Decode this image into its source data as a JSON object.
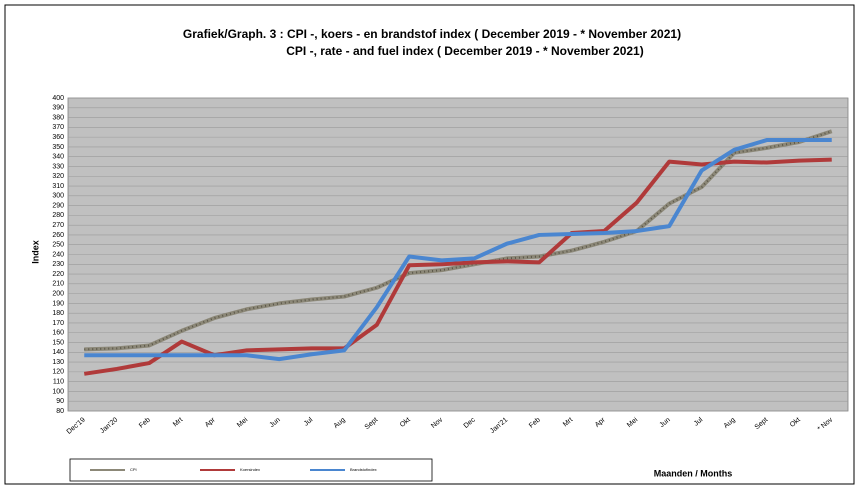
{
  "chart_data": {
    "type": "line",
    "title": "Grafiek/Graph. 3 : CPI -, koers - en brandstof index ( December 2019  -  * November 2021)",
    "subtitle": "CPI -, rate - and fuel index ( December 2019  -  * November  2021)",
    "y_label": "Index",
    "x_label": "Maanden / Months",
    "categories": [
      "Dec'19",
      "Jan'20",
      "Feb",
      "Mrt",
      "Apr",
      "Mei",
      "Jun",
      "Jul",
      "Aug",
      "Sept",
      "Okt",
      "Nov",
      "Dec",
      "Jan'21",
      "Feb",
      "Mrt",
      "Apr",
      "Mei",
      "Jun",
      "Jul",
      "Aug",
      "Sept",
      "Okt",
      "* Nov"
    ],
    "series": [
      {
        "name": "CPI",
        "color": "#8c8878",
        "values": [
          143,
          144,
          147,
          162,
          175,
          184,
          190,
          194,
          197,
          206,
          221,
          224,
          230,
          236,
          238,
          244,
          253,
          264,
          292,
          309,
          344,
          349,
          355,
          366
        ]
      },
      {
        "name": "Koersindex",
        "color": "#b03a3a",
        "values": [
          118,
          123,
          129,
          151,
          137,
          142,
          143,
          144,
          144,
          168,
          229,
          230,
          232,
          233,
          232,
          262,
          264,
          293,
          335,
          332,
          335,
          334,
          336,
          337
        ]
      },
      {
        "name": "Brandstofindex",
        "color": "#4a86d0",
        "values": [
          137,
          137,
          137,
          137,
          137,
          137,
          133,
          138,
          142,
          186,
          238,
          234,
          236,
          251,
          260,
          261,
          262,
          264,
          269,
          326,
          347,
          357,
          357,
          357
        ]
      }
    ],
    "ylim": [
      80,
      400
    ],
    "yticks": [
      80,
      90,
      100,
      110,
      120,
      130,
      140,
      150,
      160,
      170,
      180,
      190,
      200,
      210,
      220,
      230,
      240,
      250,
      260,
      270,
      280,
      290,
      300,
      310,
      320,
      330,
      340,
      350,
      360,
      370,
      380,
      390,
      400
    ],
    "grid": true
  }
}
